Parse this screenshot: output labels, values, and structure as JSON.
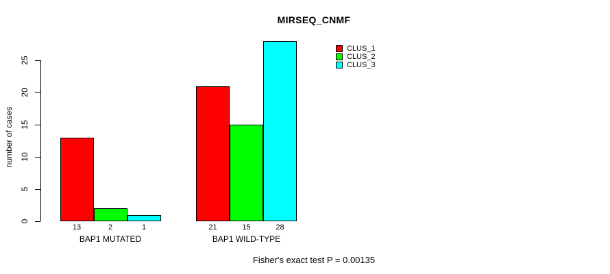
{
  "title": "MIRSEQ_CNMF",
  "footer": "Fisher's exact test P = 0.00135",
  "y_axis": {
    "label": "number of cases",
    "ticks": [
      0,
      5,
      10,
      15,
      20,
      25
    ]
  },
  "legend": {
    "items": [
      {
        "label": "CLUS_1",
        "color": "#ff0000"
      },
      {
        "label": "CLUS_2",
        "color": "#00ff00"
      },
      {
        "label": "CLUS_3",
        "color": "#00ffff"
      }
    ]
  },
  "chart_data": {
    "type": "bar",
    "title": "MIRSEQ_CNMF",
    "xlabel": "",
    "ylabel": "number of cases",
    "categories": [
      "BAP1 MUTATED",
      "BAP1 WILD-TYPE"
    ],
    "series": [
      {
        "name": "CLUS_1",
        "color": "#ff0000",
        "values": [
          13,
          21
        ]
      },
      {
        "name": "CLUS_2",
        "color": "#00ff00",
        "values": [
          2,
          15
        ]
      },
      {
        "name": "CLUS_3",
        "color": "#00ffff",
        "values": [
          1,
          28
        ]
      }
    ],
    "bar_value_labels": [
      [
        13,
        2,
        1
      ],
      [
        21,
        15,
        28
      ]
    ],
    "ylim": [
      0,
      28
    ],
    "y_ticks": [
      0,
      5,
      10,
      15,
      20,
      25
    ],
    "grid": false,
    "legend_position": "top-right",
    "bar_border_color": "#000000",
    "annotation": "Fisher's exact test P = 0.00135"
  }
}
